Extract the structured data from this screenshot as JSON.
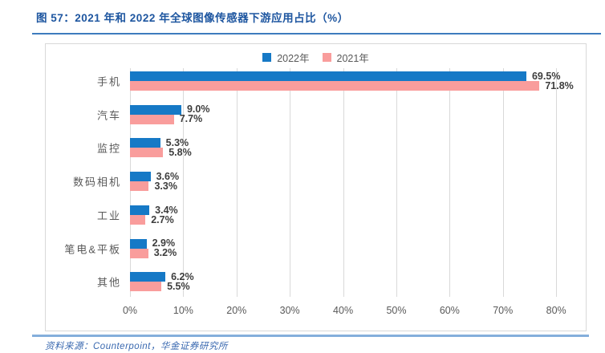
{
  "header": {
    "title": "图 57：2021 年和 2022 年全球图像传感器下游应用占比（%）"
  },
  "footer": {
    "source": "资料来源：Counterpoint，华金证券研究所"
  },
  "colors": {
    "blue": "#1679c6",
    "pink": "#f99d9c",
    "title_blue": "#1e56a0",
    "footer_blue": "#3a69b0",
    "rule_top": "#3e7cbe",
    "rule_bottom": "#84aedb",
    "grid": "#d9d9d9",
    "axis_text": "#595959",
    "value_text": "#3d3d3d"
  },
  "chart_data": {
    "type": "bar",
    "orientation": "horizontal",
    "title": "2021 年和 2022 年全球图像传感器下游应用占比（%）",
    "categories": [
      "手机",
      "汽车",
      "监控",
      "数码相机",
      "工业",
      "笔电&平板",
      "其他"
    ],
    "series": [
      {
        "name": "2022年",
        "color_key": "blue",
        "values": [
          69.5,
          9.0,
          5.3,
          3.6,
          3.4,
          2.9,
          6.2
        ],
        "labels": [
          "69.5%",
          "9.0%",
          "5.3%",
          "3.6%",
          "3.4%",
          "2.9%",
          "6.2%"
        ]
      },
      {
        "name": "2021年",
        "color_key": "pink",
        "values": [
          71.8,
          7.7,
          5.8,
          3.3,
          2.7,
          3.2,
          5.5
        ],
        "labels": [
          "71.8%",
          "7.7%",
          "5.8%",
          "3.3%",
          "2.7%",
          "3.2%",
          "5.5%"
        ]
      }
    ],
    "x_ticks": [
      "0%",
      "10%",
      "20%",
      "30%",
      "40%",
      "50%",
      "60%",
      "70%",
      "80%"
    ],
    "xlim": [
      0,
      85.4
    ],
    "grid": "vertical",
    "legend_position": "top-center"
  }
}
